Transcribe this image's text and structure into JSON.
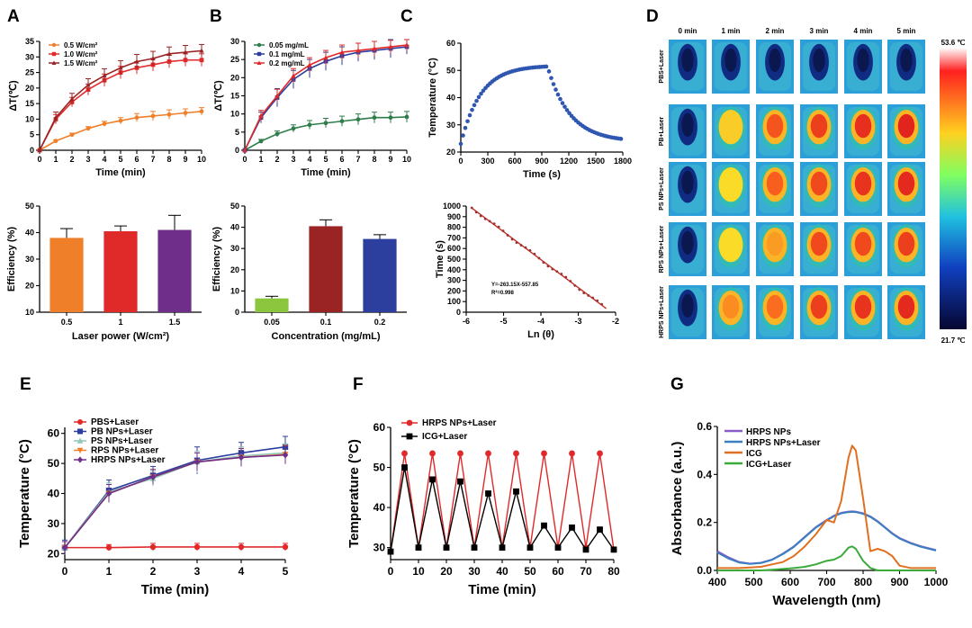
{
  "colors": {
    "orange": "#f07f2a",
    "red": "#e02a2a",
    "darkred": "#9a2424",
    "purple": "#6f2e8a",
    "green": "#2e7d4a",
    "blue": "#2c3e9e",
    "lime": "#8cc63f",
    "steelblue": "#3a6fb0",
    "scatterblue": "#2f56b0"
  },
  "panels": [
    "A",
    "B",
    "C",
    "D",
    "E",
    "F",
    "G"
  ],
  "chart_data": [
    {
      "id": "A_top",
      "type": "line",
      "xlabel": "Time (min)",
      "ylabel": "ΔT(℃)",
      "xlim": [
        0,
        10
      ],
      "ylim": [
        0,
        35
      ],
      "xticks": [
        0,
        1,
        2,
        3,
        4,
        5,
        6,
        7,
        8,
        9,
        10
      ],
      "yticks": [
        0,
        5,
        10,
        15,
        20,
        25,
        30,
        35
      ],
      "x": [
        0,
        1,
        2,
        3,
        4,
        5,
        6,
        7,
        8,
        9,
        10
      ],
      "series": [
        {
          "name": "0.5 W/cm²",
          "color": "#f07f2a",
          "marker": "circle",
          "values": [
            0,
            3,
            5,
            7,
            8.5,
            9.5,
            10.5,
            11,
            11.5,
            12,
            12.5
          ],
          "errors": [
            0,
            0.3,
            0.5,
            0.6,
            0.8,
            1,
            1.3,
            1.5,
            1.5,
            1.3,
            1.2
          ]
        },
        {
          "name": "1.0 W/cm²",
          "color": "#e02a2a",
          "marker": "square",
          "values": [
            0,
            10,
            15.5,
            19.5,
            22.5,
            25,
            26.5,
            27.5,
            28.5,
            29,
            29
          ],
          "errors": [
            0,
            1.5,
            1.5,
            1.8,
            2,
            2,
            2,
            2,
            2,
            2,
            2
          ]
        },
        {
          "name": "1.5 W/cm²",
          "color": "#9a2424",
          "marker": "triangle",
          "values": [
            0,
            10.5,
            16.5,
            21,
            24,
            26.5,
            28.5,
            29.5,
            31,
            31.5,
            32
          ],
          "errors": [
            0,
            1.8,
            1.8,
            2,
            2.2,
            2.3,
            2.3,
            2.3,
            2.2,
            2.2,
            2
          ]
        }
      ]
    },
    {
      "id": "A_bottom",
      "type": "bar",
      "xlabel": "Laser power (W/cm²)",
      "ylabel": "Efficiency (%)",
      "ylim": [
        10,
        50
      ],
      "yticks": [
        10,
        20,
        30,
        40,
        50
      ],
      "categories": [
        "0.5",
        "1",
        "1.5"
      ],
      "values": [
        38,
        40.5,
        41
      ],
      "errors": [
        3.5,
        2,
        5.5
      ],
      "colors": [
        "#f07f2a",
        "#e02a2a",
        "#6f2e8a"
      ]
    },
    {
      "id": "B_top",
      "type": "line",
      "xlabel": "Time (min)",
      "ylabel": "ΔT(℃)",
      "xlim": [
        0,
        10
      ],
      "ylim": [
        0,
        30
      ],
      "xticks": [
        0,
        1,
        2,
        3,
        4,
        5,
        6,
        7,
        8,
        9,
        10
      ],
      "yticks": [
        0,
        5,
        10,
        15,
        20,
        25,
        30
      ],
      "x": [
        0,
        1,
        2,
        3,
        4,
        5,
        6,
        7,
        8,
        9,
        10
      ],
      "series": [
        {
          "name": "0.05 mg/mL",
          "color": "#2e7d4a",
          "marker": "circle",
          "values": [
            0,
            2.5,
            4.5,
            6,
            7,
            7.5,
            8,
            8.5,
            9,
            9,
            9.2
          ],
          "errors": [
            0,
            0.5,
            0.8,
            1,
            1.2,
            1.3,
            1.4,
            1.5,
            1.5,
            1.5,
            1.5
          ]
        },
        {
          "name": "0.1 mg/mL",
          "color": "#2c3e9e",
          "marker": "square",
          "values": [
            0,
            9,
            14.5,
            19.5,
            22.5,
            24.5,
            26,
            27,
            27.5,
            28,
            28.5
          ],
          "errors": [
            0,
            1.5,
            2.5,
            2.5,
            2.5,
            2.5,
            2.5,
            2.5,
            2.5,
            2.5,
            2
          ]
        },
        {
          "name": "0.2 mg/mL",
          "color": "#e02a2a",
          "marker": "triangle",
          "values": [
            0,
            9.5,
            15,
            20.5,
            23.5,
            25.5,
            27,
            27.5,
            28,
            28.5,
            29
          ],
          "errors": [
            0,
            1.5,
            1.8,
            2,
            2,
            2,
            2,
            2,
            2,
            1.8,
            1.5
          ]
        }
      ]
    },
    {
      "id": "B_bottom",
      "type": "bar",
      "xlabel": "Concentration (mg/mL)",
      "ylabel": "Efficiency (%)",
      "ylim": [
        0,
        50
      ],
      "yticks": [
        0,
        10,
        20,
        30,
        40,
        50
      ],
      "categories": [
        "0.05",
        "0.1",
        "0.2"
      ],
      "values": [
        6.5,
        40.5,
        34.5
      ],
      "errors": [
        1,
        3,
        2
      ],
      "colors": [
        "#8cc63f",
        "#9a2424",
        "#2c3e9e"
      ]
    },
    {
      "id": "C_top",
      "type": "scatter",
      "xlabel": "Time (s)",
      "ylabel": "Temperature (°C)",
      "xlim": [
        0,
        1800
      ],
      "ylim": [
        20,
        60
      ],
      "xticks": [
        0,
        300,
        600,
        900,
        1200,
        1500,
        1800
      ],
      "yticks": [
        20,
        30,
        40,
        50,
        60
      ],
      "heating": {
        "t_end": 960,
        "T0": 23,
        "Tmax": 51.8
      },
      "cooling": {
        "t_start": 960,
        "t_end": 1800,
        "T0": 51.8,
        "Tamb": 23.8
      }
    },
    {
      "id": "C_bottom",
      "type": "scatter",
      "xlabel": "Ln (θ)",
      "ylabel": "Time (s)",
      "xlim": [
        -6,
        -2
      ],
      "ylim": [
        0,
        1000
      ],
      "xticks": [
        -6,
        -5,
        -4,
        -3,
        -2
      ],
      "yticks": [
        0,
        100,
        200,
        300,
        400,
        500,
        600,
        700,
        800,
        900,
        1000
      ],
      "xtick_labels": [
        "-6",
        "-5",
        "-4",
        "-3",
        "-2"
      ],
      "fit_slope": -263.15,
      "fit_intercept": -557.85,
      "annotation_eq": "Y=-263.15X-557.85",
      "annotation_r2": "R²=0.998",
      "x_range": [
        -5.85,
        -2.25
      ]
    },
    {
      "id": "E",
      "type": "line",
      "xlabel": "Time (min)",
      "ylabel": "Temperature (°C)",
      "xlim": [
        0,
        5
      ],
      "ylim": [
        18,
        62
      ],
      "xticks": [
        0,
        1,
        2,
        3,
        4,
        5
      ],
      "yticks": [
        20,
        30,
        40,
        50,
        60
      ],
      "x": [
        0,
        1,
        2,
        3,
        4,
        5
      ],
      "series": [
        {
          "name": "PBS+Laser",
          "color": "#e02a2a",
          "marker": "circle",
          "values": [
            22,
            22,
            22.2,
            22.2,
            22.2,
            22.2
          ],
          "errors": [
            0.7,
            1,
            1.2,
            1.2,
            1.2,
            1.2
          ]
        },
        {
          "name": "PB NPs+Laser",
          "color": "#2c3e9e",
          "marker": "square",
          "values": [
            22,
            41,
            46,
            51,
            53.5,
            55.5
          ],
          "errors": [
            2.5,
            3.5,
            3,
            4.5,
            3.5,
            3.5
          ]
        },
        {
          "name": "PS NPs+Laser",
          "color": "#8fc7b8",
          "marker": "triangle",
          "values": [
            22,
            40.5,
            45,
            50.5,
            52.5,
            53.5
          ],
          "errors": [
            2,
            3,
            2.5,
            3.5,
            3,
            3
          ]
        },
        {
          "name": "RPS NPs+Laser",
          "color": "#f07f2a",
          "marker": "triangle-down",
          "values": [
            22,
            40,
            45.5,
            50.5,
            52,
            53
          ],
          "errors": [
            2,
            3,
            2.5,
            3,
            3,
            3
          ]
        },
        {
          "name": "HRPS NPs+Laser",
          "color": "#6f2e8a",
          "marker": "diamond",
          "values": [
            22,
            40,
            45.5,
            50.5,
            52,
            52.8
          ],
          "errors": [
            2,
            3,
            2.5,
            3,
            3,
            3
          ]
        }
      ]
    },
    {
      "id": "F",
      "type": "line",
      "xlabel": "Time (min)",
      "ylabel": "Temperature (°C)",
      "xlim": [
        0,
        80
      ],
      "ylim": [
        27,
        60
      ],
      "xticks": [
        0,
        10,
        20,
        30,
        40,
        50,
        60,
        70,
        80
      ],
      "yticks": [
        30,
        40,
        50,
        60
      ],
      "series": [
        {
          "name": "HRPS NPs+Laser",
          "color": "#e02a2a",
          "marker": "circle",
          "x": [
            0,
            5,
            10,
            15,
            20,
            25,
            30,
            35,
            40,
            45,
            50,
            55,
            60,
            65,
            70,
            75,
            80
          ],
          "values": [
            29,
            53.5,
            30,
            53.5,
            30,
            53.5,
            30,
            53.5,
            30,
            53.5,
            30,
            53.5,
            30,
            53.5,
            30,
            53.5,
            29.5
          ]
        },
        {
          "name": "ICG+Laser",
          "color": "#000000",
          "marker": "square",
          "x": [
            0,
            5,
            10,
            15,
            20,
            25,
            30,
            35,
            40,
            45,
            50,
            55,
            60,
            65,
            70,
            75,
            80
          ],
          "values": [
            29,
            50,
            30,
            47,
            30,
            46.5,
            30,
            43.5,
            30,
            44,
            30,
            35.5,
            30,
            35,
            29.5,
            34.5,
            29.5
          ]
        }
      ]
    },
    {
      "id": "G",
      "type": "line",
      "xlabel": "Wavelength (nm)",
      "ylabel": "Absorbance (a.u.)",
      "xlim": [
        400,
        1000
      ],
      "ylim": [
        0,
        0.6
      ],
      "xticks": [
        400,
        500,
        600,
        700,
        800,
        900,
        1000
      ],
      "yticks": [
        0.0,
        0.2,
        0.4,
        0.6
      ],
      "ytick_labels": [
        "0.0",
        "0.2",
        "0.4",
        "0.6"
      ],
      "x": [
        400,
        430,
        460,
        490,
        520,
        550,
        580,
        610,
        640,
        670,
        700,
        720,
        740,
        760,
        770,
        780,
        800,
        820,
        840,
        860,
        880,
        900,
        930,
        960,
        1000
      ],
      "series": [
        {
          "name": "HRPS NPs",
          "color": "#8a5cc8",
          "values": [
            0.08,
            0.055,
            0.035,
            0.028,
            0.032,
            0.045,
            0.07,
            0.1,
            0.14,
            0.18,
            0.21,
            0.228,
            0.24,
            0.245,
            0.246,
            0.245,
            0.238,
            0.225,
            0.205,
            0.18,
            0.155,
            0.135,
            0.115,
            0.1,
            0.085
          ]
        },
        {
          "name": "HRPS NPs+Laser",
          "color": "#3a7fc0",
          "values": [
            0.075,
            0.05,
            0.033,
            0.027,
            0.031,
            0.044,
            0.068,
            0.098,
            0.138,
            0.178,
            0.208,
            0.226,
            0.238,
            0.243,
            0.244,
            0.243,
            0.236,
            0.223,
            0.203,
            0.178,
            0.153,
            0.133,
            0.113,
            0.098,
            0.083
          ]
        },
        {
          "name": "ICG",
          "color": "#e07020",
          "values": [
            0.01,
            0.01,
            0.01,
            0.012,
            0.015,
            0.025,
            0.035,
            0.06,
            0.1,
            0.15,
            0.21,
            0.2,
            0.29,
            0.47,
            0.52,
            0.5,
            0.3,
            0.08,
            0.09,
            0.08,
            0.06,
            0.02,
            0.01,
            0.01,
            0.01
          ]
        },
        {
          "name": "ICG+Laser",
          "color": "#3aaa3a",
          "values": [
            0.0,
            0.0,
            0.0,
            0.0,
            0.0,
            0.003,
            0.006,
            0.01,
            0.015,
            0.025,
            0.04,
            0.045,
            0.06,
            0.095,
            0.1,
            0.09,
            0.04,
            0.01,
            0.0,
            0.0,
            0.0,
            0.0,
            0.0,
            0.0,
            0.0
          ]
        }
      ]
    }
  ],
  "thermal": {
    "time_labels": [
      "0 min",
      "1 min",
      "2 min",
      "3 min",
      "4 min",
      "5 min"
    ],
    "rows": [
      {
        "label": "PBS+Laser",
        "intensity": [
          0,
          0,
          0,
          0,
          0,
          0
        ]
      },
      {
        "label": "PB+Laser",
        "intensity": [
          0,
          0.72,
          0.88,
          0.92,
          0.95,
          0.97
        ]
      },
      {
        "label": "PS NPs+Laser",
        "intensity": [
          0,
          0.7,
          0.86,
          0.9,
          0.94,
          0.96
        ]
      },
      {
        "label": "RPS NPs+Laser",
        "intensity": [
          0,
          0.7,
          0.78,
          0.9,
          0.9,
          0.92
        ]
      },
      {
        "label": "HRPS NPs+Laser",
        "intensity": [
          0,
          0.8,
          0.84,
          0.92,
          0.94,
          0.96
        ]
      }
    ],
    "scale_max": "53.6 ℃",
    "scale_min": "21.7 ℃"
  }
}
